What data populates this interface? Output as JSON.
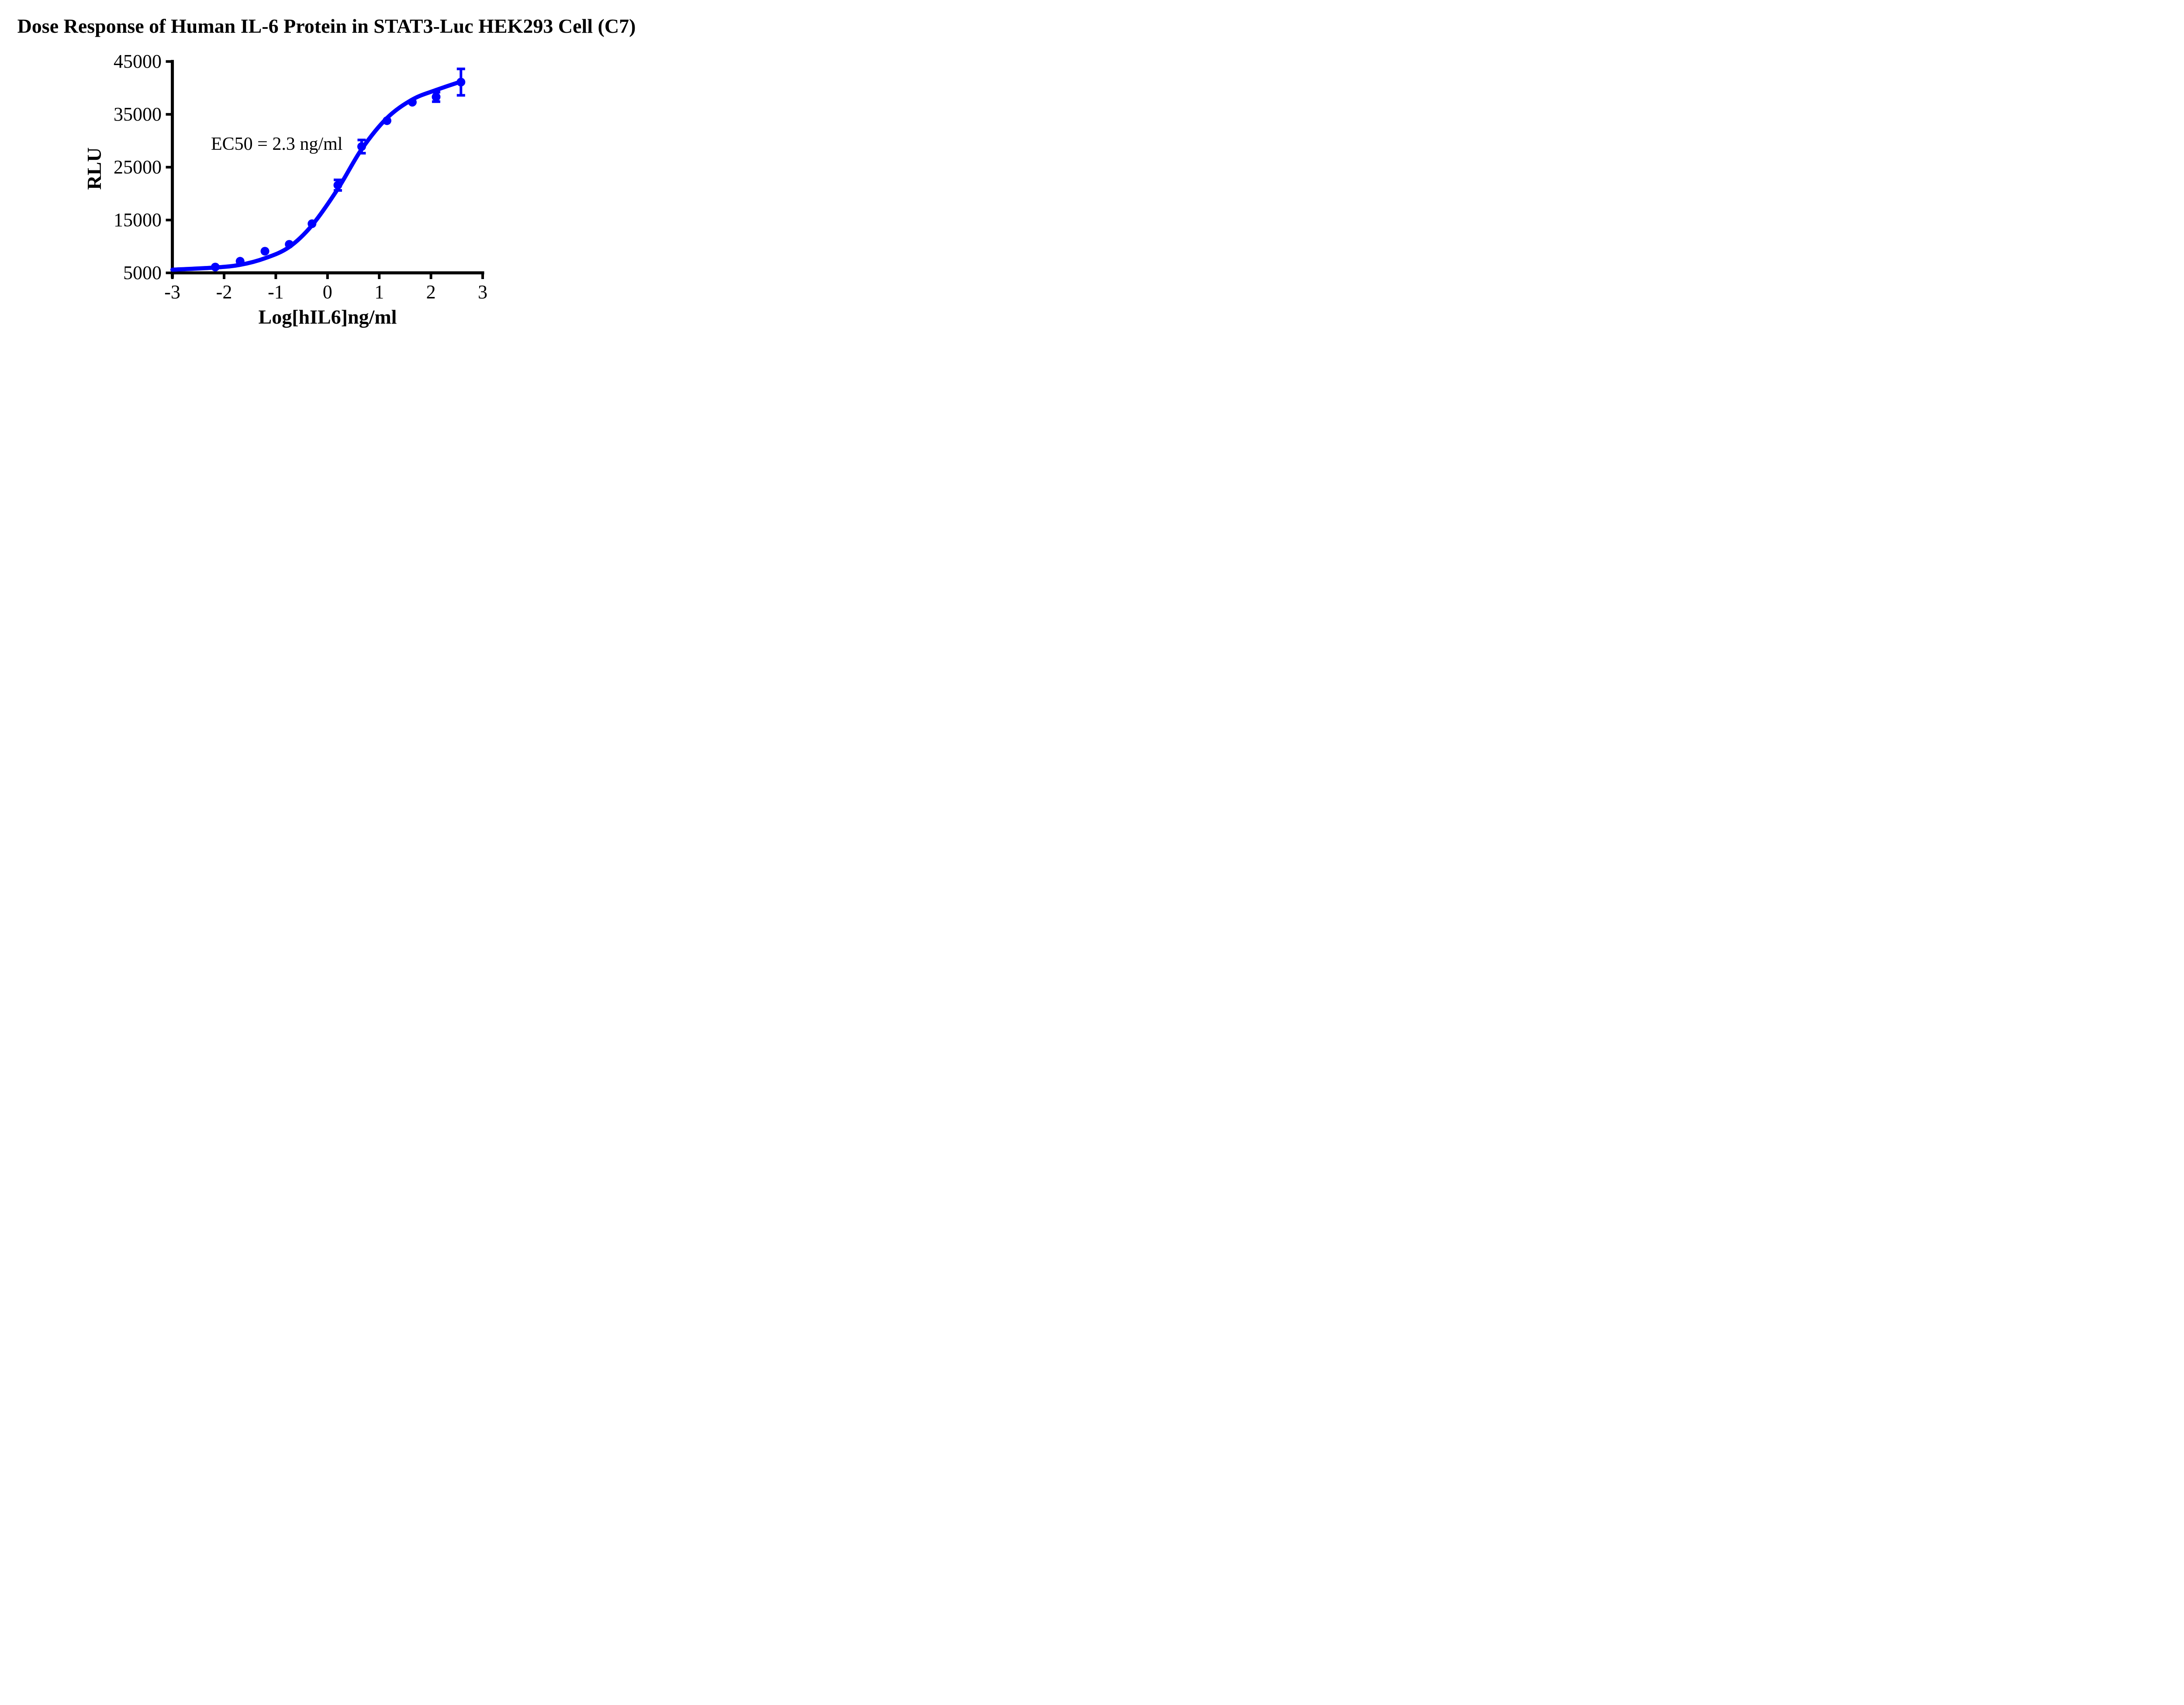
{
  "chart_data": {
    "type": "scatter",
    "subtype": "dose-response-4PL-fit",
    "title": "Dose Response of Human IL-6 Protein in STAT3-Luc HEK293 Cell (C7)",
    "xlabel": "Log[hIL6]ng/ml",
    "ylabel": "RLU",
    "annotation": "EC50 = 2.3 ng/ml",
    "ec50_ng_ml": 2.3,
    "log_ec50": 0.36,
    "series_color": "#0000FF",
    "axis_color": "#000000",
    "background_color": "#FFFFFF",
    "grid": false,
    "legend_position": "none",
    "xlim": [
      -3,
      3
    ],
    "ylim": [
      5000,
      45000
    ],
    "x_ticks": [
      -3,
      -2,
      -1,
      0,
      1,
      2,
      3
    ],
    "y_ticks": [
      5000,
      15000,
      25000,
      35000,
      45000
    ],
    "points": [
      {
        "log_x": -2.17,
        "rlu": 6100,
        "err": 0
      },
      {
        "log_x": -1.69,
        "rlu": 7200,
        "err": 0
      },
      {
        "log_x": -1.21,
        "rlu": 9100,
        "err": 0
      },
      {
        "log_x": -0.74,
        "rlu": 10400,
        "err": 0
      },
      {
        "log_x": -0.3,
        "rlu": 14300,
        "err": 0
      },
      {
        "log_x": 0.2,
        "rlu": 21600,
        "err": 1000
      },
      {
        "log_x": 0.66,
        "rlu": 28900,
        "err": 1250
      },
      {
        "log_x": 1.15,
        "rlu": 33800,
        "err": 0
      },
      {
        "log_x": 1.64,
        "rlu": 37300,
        "err": 0
      },
      {
        "log_x": 2.1,
        "rlu": 38300,
        "err": 900
      },
      {
        "log_x": 2.58,
        "rlu": 41100,
        "err": 2500
      }
    ],
    "curve_anchors": [
      [
        -3.0,
        5600
      ],
      [
        -2.2,
        6000
      ],
      [
        -1.7,
        6500
      ],
      [
        -1.2,
        7800
      ],
      [
        -0.74,
        9900
      ],
      [
        -0.3,
        14000
      ],
      [
        0.2,
        20900
      ],
      [
        0.66,
        28400
      ],
      [
        1.15,
        34300
      ],
      [
        1.64,
        37800
      ],
      [
        2.1,
        39600
      ],
      [
        2.58,
        41200
      ]
    ]
  }
}
